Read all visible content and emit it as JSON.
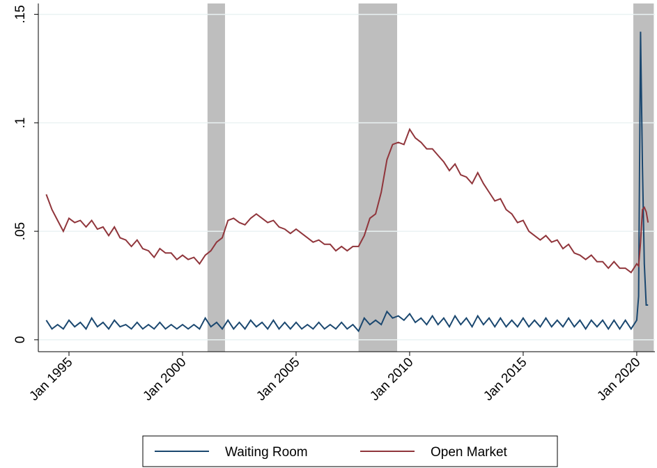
{
  "chart_data": {
    "type": "line",
    "x": [
      1994.0,
      1994.25,
      1994.5,
      1994.75,
      1995.0,
      1995.25,
      1995.5,
      1995.75,
      1996.0,
      1996.25,
      1996.5,
      1996.75,
      1997.0,
      1997.25,
      1997.5,
      1997.75,
      1998.0,
      1998.25,
      1998.5,
      1998.75,
      1999.0,
      1999.25,
      1999.5,
      1999.75,
      2000.0,
      2000.25,
      2000.5,
      2000.75,
      2001.0,
      2001.25,
      2001.5,
      2001.75,
      2002.0,
      2002.25,
      2002.5,
      2002.75,
      2003.0,
      2003.25,
      2003.5,
      2003.75,
      2004.0,
      2004.25,
      2004.5,
      2004.75,
      2005.0,
      2005.25,
      2005.5,
      2005.75,
      2006.0,
      2006.25,
      2006.5,
      2006.75,
      2007.0,
      2007.25,
      2007.5,
      2007.75,
      2008.0,
      2008.25,
      2008.5,
      2008.75,
      2009.0,
      2009.25,
      2009.5,
      2009.75,
      2010.0,
      2010.25,
      2010.5,
      2010.75,
      2011.0,
      2011.25,
      2011.5,
      2011.75,
      2012.0,
      2012.25,
      2012.5,
      2012.75,
      2013.0,
      2013.25,
      2013.5,
      2013.75,
      2014.0,
      2014.25,
      2014.5,
      2014.75,
      2015.0,
      2015.25,
      2015.5,
      2015.75,
      2016.0,
      2016.25,
      2016.5,
      2016.75,
      2017.0,
      2017.25,
      2017.5,
      2017.75,
      2018.0,
      2018.25,
      2018.5,
      2018.75,
      2019.0,
      2019.25,
      2019.5,
      2019.75,
      2020.0,
      2020.083,
      2020.167,
      2020.25,
      2020.333,
      2020.417,
      2020.5
    ],
    "series": [
      {
        "name": "Waiting Room",
        "color": "#1a476f",
        "values": [
          0.009,
          0.005,
          0.007,
          0.005,
          0.009,
          0.006,
          0.008,
          0.005,
          0.01,
          0.006,
          0.008,
          0.005,
          0.009,
          0.006,
          0.007,
          0.005,
          0.008,
          0.005,
          0.007,
          0.005,
          0.008,
          0.005,
          0.007,
          0.005,
          0.007,
          0.005,
          0.007,
          0.005,
          0.01,
          0.006,
          0.008,
          0.005,
          0.009,
          0.005,
          0.008,
          0.005,
          0.009,
          0.006,
          0.008,
          0.005,
          0.009,
          0.005,
          0.008,
          0.005,
          0.008,
          0.005,
          0.007,
          0.005,
          0.008,
          0.005,
          0.007,
          0.005,
          0.008,
          0.005,
          0.007,
          0.004,
          0.01,
          0.007,
          0.009,
          0.007,
          0.013,
          0.01,
          0.011,
          0.009,
          0.012,
          0.008,
          0.01,
          0.007,
          0.011,
          0.007,
          0.01,
          0.006,
          0.011,
          0.007,
          0.01,
          0.006,
          0.011,
          0.007,
          0.01,
          0.006,
          0.01,
          0.006,
          0.009,
          0.006,
          0.01,
          0.006,
          0.009,
          0.006,
          0.01,
          0.006,
          0.009,
          0.006,
          0.01,
          0.006,
          0.009,
          0.005,
          0.009,
          0.006,
          0.009,
          0.005,
          0.009,
          0.005,
          0.009,
          0.005,
          0.009,
          0.02,
          0.142,
          0.08,
          0.035,
          0.016,
          0.016
        ]
      },
      {
        "name": "Open Market",
        "color": "#90353b",
        "values": [
          0.067,
          0.06,
          0.055,
          0.05,
          0.056,
          0.054,
          0.055,
          0.052,
          0.055,
          0.051,
          0.052,
          0.048,
          0.052,
          0.047,
          0.046,
          0.043,
          0.046,
          0.042,
          0.041,
          0.038,
          0.042,
          0.04,
          0.04,
          0.037,
          0.039,
          0.037,
          0.038,
          0.035,
          0.039,
          0.041,
          0.045,
          0.047,
          0.055,
          0.056,
          0.054,
          0.053,
          0.056,
          0.058,
          0.056,
          0.054,
          0.055,
          0.052,
          0.051,
          0.049,
          0.051,
          0.049,
          0.047,
          0.045,
          0.046,
          0.044,
          0.044,
          0.041,
          0.043,
          0.041,
          0.043,
          0.043,
          0.048,
          0.056,
          0.058,
          0.068,
          0.083,
          0.09,
          0.091,
          0.09,
          0.097,
          0.093,
          0.091,
          0.088,
          0.088,
          0.085,
          0.082,
          0.078,
          0.081,
          0.076,
          0.075,
          0.072,
          0.077,
          0.072,
          0.068,
          0.064,
          0.065,
          0.06,
          0.058,
          0.054,
          0.055,
          0.05,
          0.048,
          0.046,
          0.048,
          0.045,
          0.046,
          0.042,
          0.044,
          0.04,
          0.039,
          0.037,
          0.039,
          0.036,
          0.036,
          0.033,
          0.036,
          0.033,
          0.033,
          0.031,
          0.035,
          0.034,
          0.045,
          0.06,
          0.061,
          0.059,
          0.054
        ]
      }
    ],
    "shaded_ranges": [
      [
        2001.1,
        2001.87
      ],
      [
        2007.75,
        2009.45
      ],
      [
        2019.85,
        2020.75
      ]
    ],
    "xlim": [
      1993.65,
      2020.8
    ],
    "xticks": [
      {
        "value": 1995,
        "label": "Jan 1995"
      },
      {
        "value": 2000,
        "label": "Jan 2000"
      },
      {
        "value": 2005,
        "label": "Jan 2005"
      },
      {
        "value": 2010,
        "label": "Jan 2010"
      },
      {
        "value": 2015,
        "label": "Jan 2015"
      },
      {
        "value": 2020,
        "label": "Jan 2020"
      }
    ],
    "ylim": [
      -0.0055,
      0.155
    ],
    "yticks": [
      0,
      {
        "value": 0.05,
        "label": ".05"
      },
      {
        "value": 0.1,
        "label": ".1"
      },
      {
        "value": 0.15,
        "label": ".15"
      }
    ],
    "grid": true,
    "legend": "bottom",
    "shade_color": "#bebebe"
  }
}
